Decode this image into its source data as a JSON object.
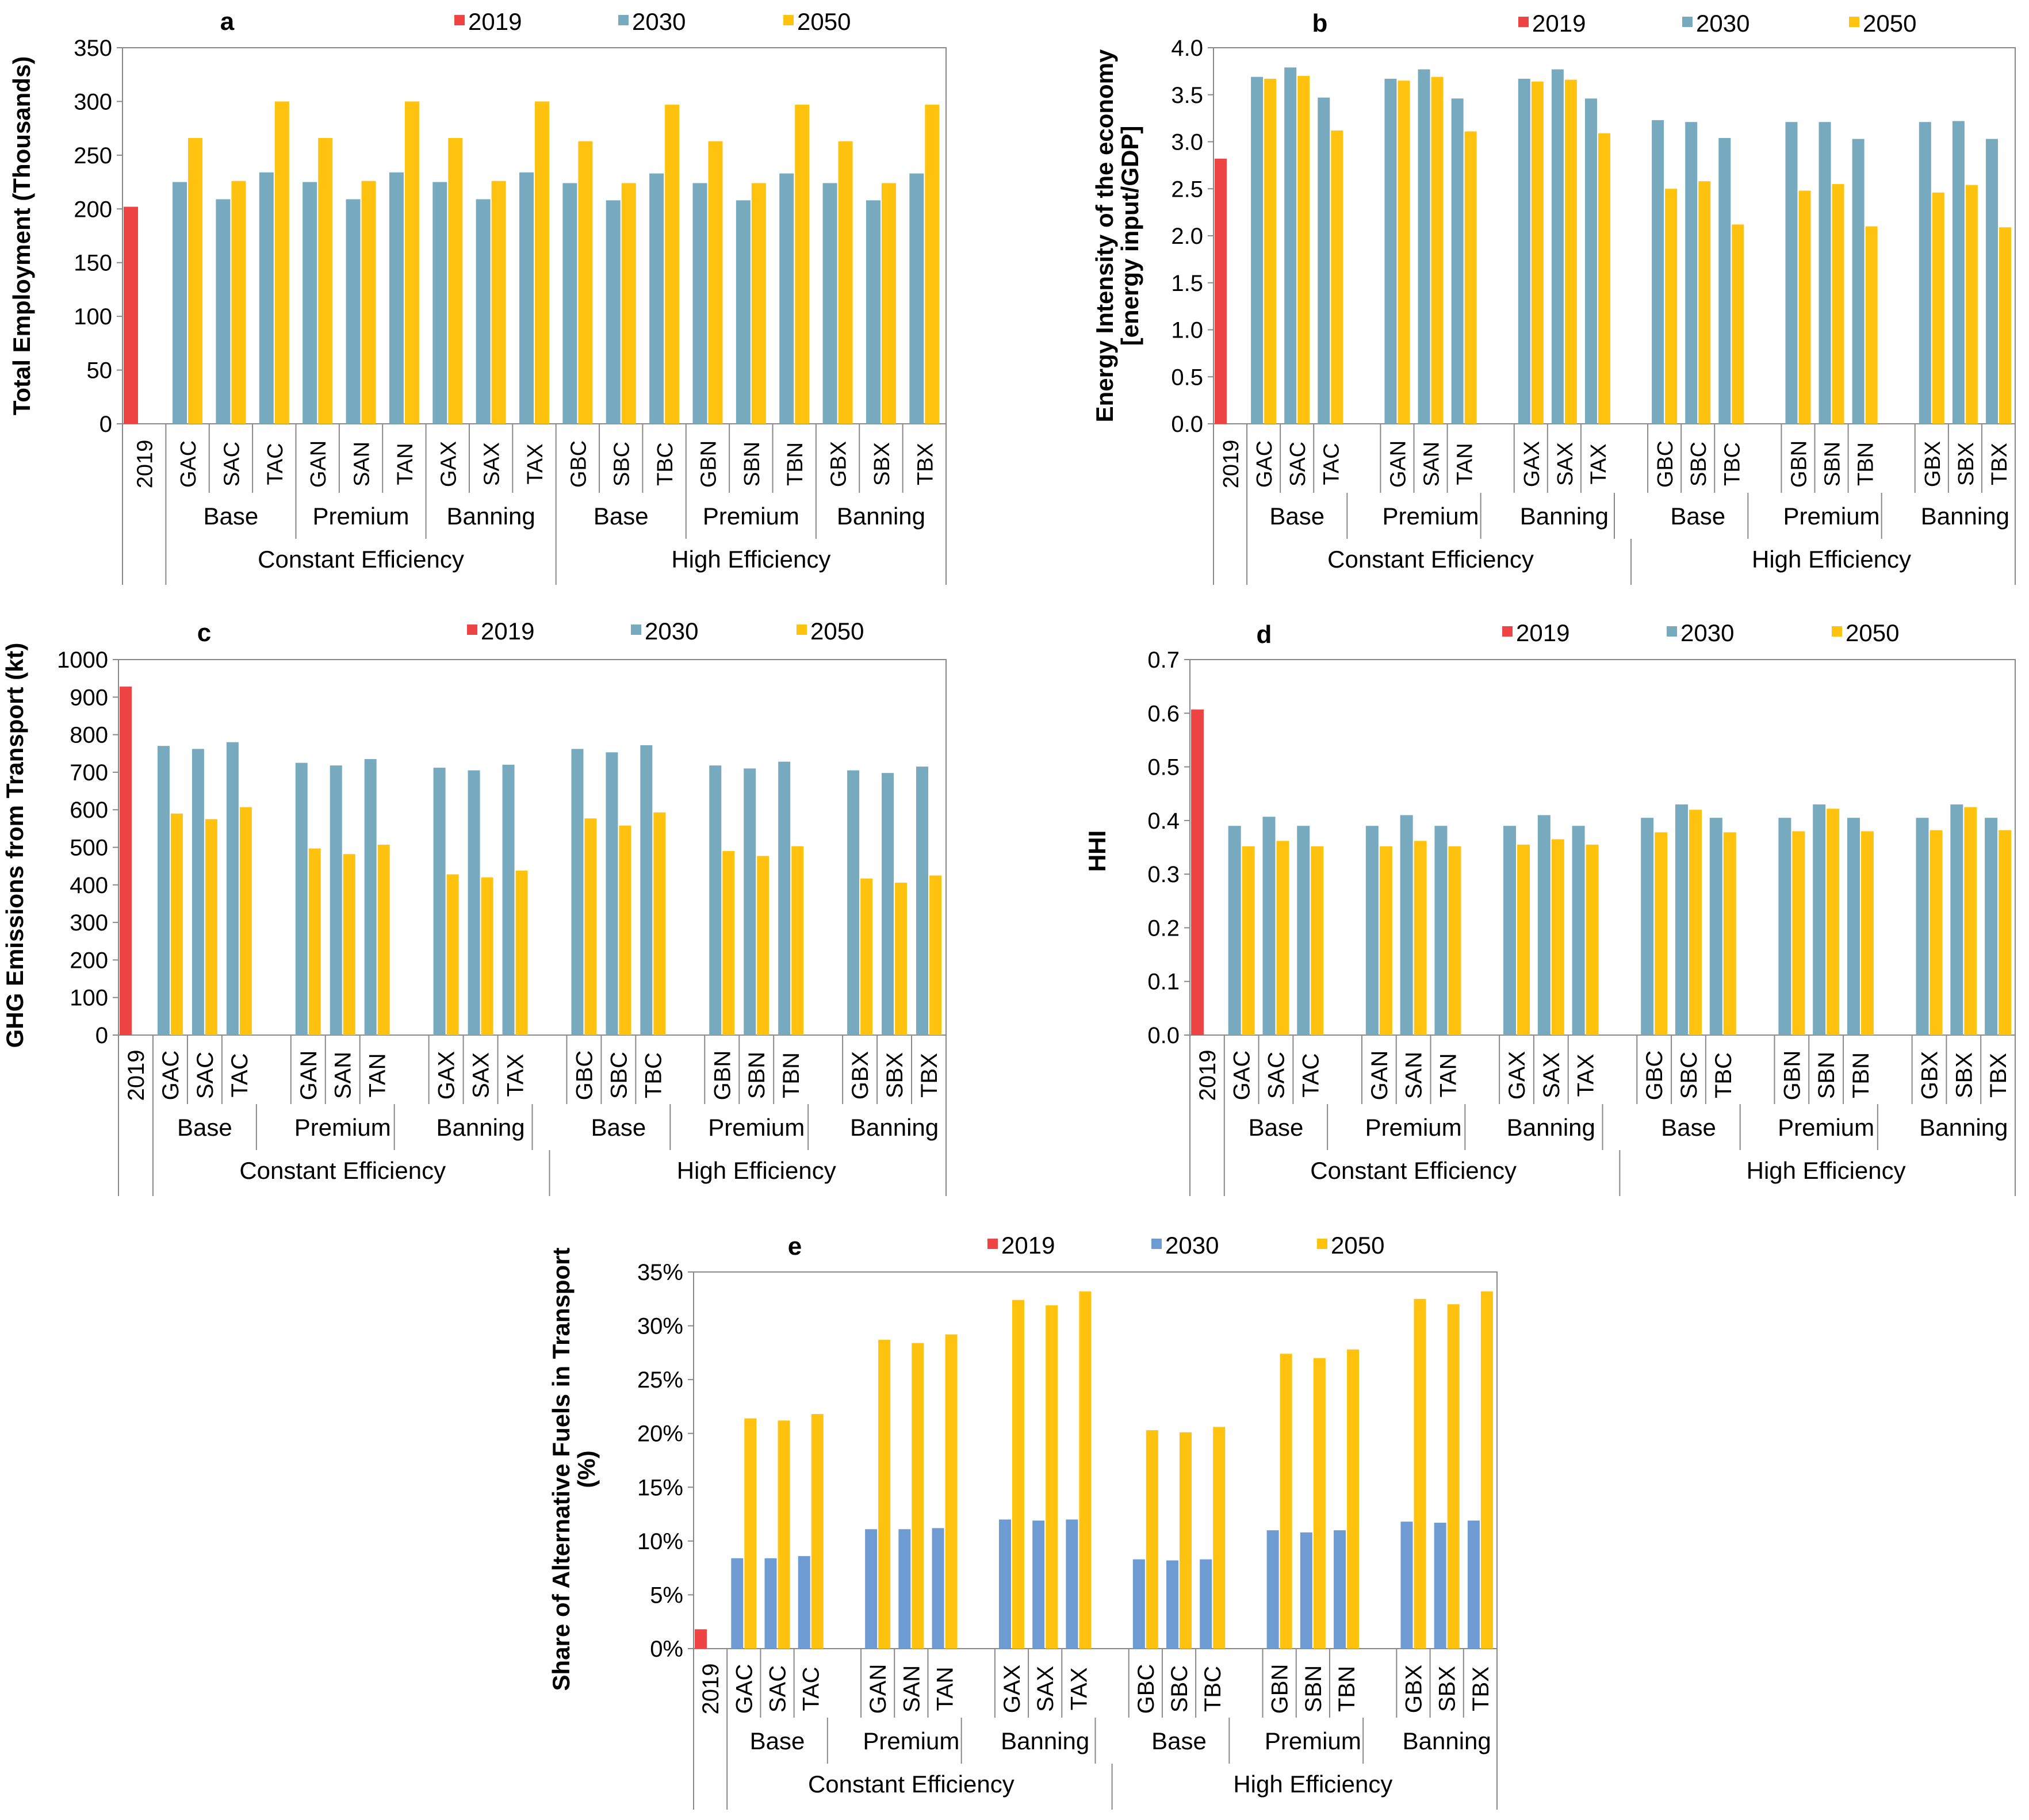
{
  "colors": {
    "y2019": "#ee4444",
    "y2030_teal": "#77a9bf",
    "y2030_blue": "#6e9bd2",
    "y2050": "#ffc20e",
    "axis": "#888888"
  },
  "categories": [
    "2019",
    "GAC",
    "SAC",
    "TAC",
    "GAN",
    "SAN",
    "TAN",
    "GAX",
    "SAX",
    "TAX",
    "GBC",
    "SBC",
    "TBC",
    "GBN",
    "SBN",
    "TBN",
    "GBX",
    "SBX",
    "TBX"
  ],
  "policy_groups": [
    "Base",
    "Premium",
    "Banning",
    "Base",
    "Premium",
    "Banning"
  ],
  "efficiency_groups": [
    "Constant Efficiency",
    "High Efficiency"
  ],
  "chart_data": [
    {
      "id": "a",
      "type": "bar",
      "title": "a",
      "xlabel": "",
      "ylabel": "Total Employment (Thousands)",
      "ylim": [
        0,
        350
      ],
      "yticks": [
        "0",
        "50",
        "100",
        "150",
        "200",
        "250",
        "300",
        "350"
      ],
      "legend": [
        "2019",
        "2030",
        "2050"
      ],
      "grid": false,
      "legend_position": "top",
      "series": [
        {
          "name": "2019",
          "values": [
            202
          ]
        },
        {
          "name": "2030",
          "values": [
            null,
            225,
            209,
            234,
            225,
            209,
            234,
            225,
            209,
            234,
            224,
            208,
            233,
            224,
            208,
            233,
            224,
            208,
            233
          ]
        },
        {
          "name": "2050",
          "values": [
            null,
            266,
            226,
            300,
            266,
            226,
            300,
            266,
            226,
            300,
            263,
            224,
            297,
            263,
            224,
            297,
            263,
            224,
            297
          ]
        }
      ]
    },
    {
      "id": "b",
      "type": "bar",
      "title": "b",
      "xlabel": "",
      "ylabel": "Energy Intensity of the economy",
      "ylabel2": "[energy input/GDP]",
      "ylim": [
        0,
        4
      ],
      "yticks": [
        "0.0",
        "0.5",
        "1.0",
        "1.5",
        "2.0",
        "2.5",
        "3.0",
        "3.5",
        "4.0"
      ],
      "legend": [
        "2019",
        "2030",
        "2050"
      ],
      "grid": false,
      "legend_position": "top",
      "series": [
        {
          "name": "2019",
          "values": [
            2.82
          ]
        },
        {
          "name": "2030",
          "values": [
            null,
            3.69,
            3.79,
            3.47,
            3.67,
            3.77,
            3.46,
            3.67,
            3.77,
            3.46,
            3.23,
            3.21,
            3.04,
            3.21,
            3.21,
            3.03,
            3.21,
            3.22,
            3.03
          ]
        },
        {
          "name": "2050",
          "values": [
            null,
            3.67,
            3.7,
            3.12,
            3.65,
            3.69,
            3.11,
            3.64,
            3.66,
            3.09,
            2.5,
            2.58,
            2.12,
            2.48,
            2.55,
            2.1,
            2.46,
            2.54,
            2.09
          ]
        }
      ]
    },
    {
      "id": "c",
      "type": "bar",
      "title": "c",
      "xlabel": "",
      "ylabel": "GHG Emissions from Transport (kt)",
      "ylim": [
        0,
        1000
      ],
      "yticks": [
        "0",
        "100",
        "200",
        "300",
        "400",
        "500",
        "600",
        "700",
        "800",
        "900",
        "1000"
      ],
      "legend": [
        "2019",
        "2030",
        "2050"
      ],
      "grid": false,
      "legend_position": "top",
      "series": [
        {
          "name": "2019",
          "values": [
            928
          ]
        },
        {
          "name": "2030",
          "values": [
            null,
            770,
            762,
            780,
            725,
            718,
            735,
            712,
            705,
            720,
            762,
            753,
            772,
            718,
            710,
            728,
            705,
            698,
            715
          ]
        },
        {
          "name": "2050",
          "values": [
            null,
            590,
            575,
            607,
            497,
            482,
            507,
            428,
            420,
            438,
            577,
            558,
            593,
            490,
            477,
            503,
            417,
            406,
            425
          ]
        }
      ]
    },
    {
      "id": "d",
      "type": "bar",
      "title": "d",
      "xlabel": "",
      "ylabel": "HHI",
      "ylim": [
        0,
        0.7
      ],
      "yticks": [
        "0.0",
        "0.1",
        "0.2",
        "0.3",
        "0.4",
        "0.5",
        "0.6",
        "0.7"
      ],
      "legend": [
        "2019",
        "2030",
        "2050"
      ],
      "grid": false,
      "legend_position": "top",
      "series": [
        {
          "name": "2019",
          "values": [
            0.607
          ]
        },
        {
          "name": "2030",
          "values": [
            null,
            0.39,
            0.407,
            0.39,
            0.39,
            0.41,
            0.39,
            0.39,
            0.41,
            0.39,
            0.405,
            0.43,
            0.405,
            0.405,
            0.43,
            0.405,
            0.405,
            0.43,
            0.405
          ]
        },
        {
          "name": "2050",
          "values": [
            null,
            0.352,
            0.362,
            0.352,
            0.352,
            0.362,
            0.352,
            0.355,
            0.365,
            0.355,
            0.378,
            0.42,
            0.378,
            0.38,
            0.422,
            0.38,
            0.382,
            0.425,
            0.382
          ]
        }
      ]
    },
    {
      "id": "e",
      "type": "bar",
      "title": "e",
      "xlabel": "",
      "ylabel": "Share of Alternative Fuels in Transport",
      "ylabel2": "(%)",
      "ylim": [
        0,
        35
      ],
      "yticks": [
        "0%",
        "5%",
        "10%",
        "15%",
        "20%",
        "25%",
        "30%",
        "35%"
      ],
      "legend": [
        "2019",
        "2030",
        "2050"
      ],
      "grid": false,
      "legend_position": "top",
      "series": [
        {
          "name": "2019",
          "values": [
            1.8
          ]
        },
        {
          "name": "2030",
          "values": [
            null,
            8.4,
            8.4,
            8.6,
            11.1,
            11.1,
            11.2,
            12.0,
            11.9,
            12.0,
            8.3,
            8.2,
            8.3,
            11.0,
            10.8,
            11.0,
            11.8,
            11.7,
            11.9
          ]
        },
        {
          "name": "2050",
          "values": [
            null,
            21.4,
            21.2,
            21.8,
            28.7,
            28.4,
            29.2,
            32.4,
            31.9,
            33.2,
            20.3,
            20.1,
            20.6,
            27.4,
            27.0,
            27.8,
            32.5,
            32.0,
            33.2
          ]
        }
      ]
    }
  ]
}
